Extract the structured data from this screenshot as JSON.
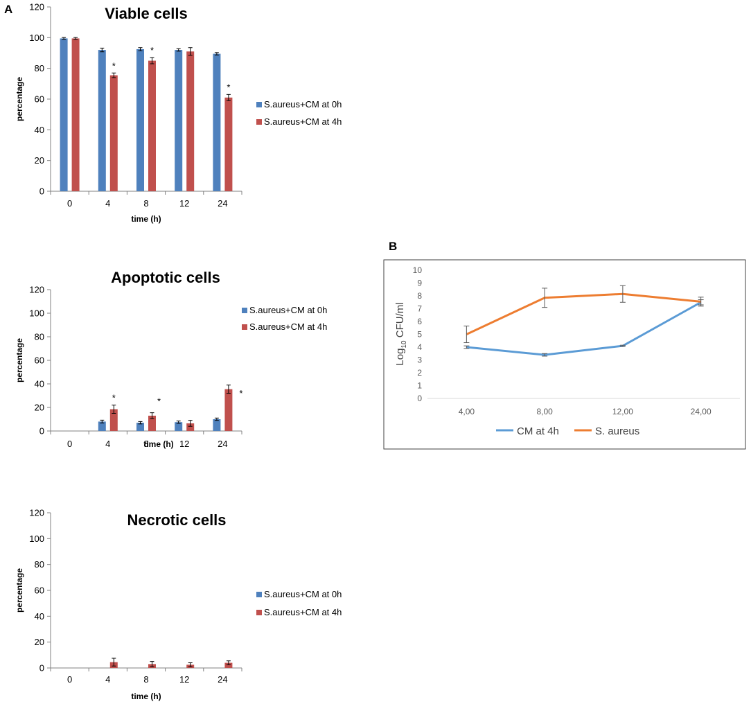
{
  "panels": {
    "a": "A",
    "b": "B"
  },
  "colors": {
    "series0": "#4f81bd",
    "series1": "#c0504d",
    "cm4h": "#5b9bd5",
    "saureus": "#ed7d31",
    "axis": "#7f7f7f",
    "frame": "#404040"
  },
  "chart_data": [
    {
      "id": "viable",
      "type": "bar",
      "title": "Viable cells",
      "xlabel": "time (h)",
      "ylabel": "percentage",
      "ylim": [
        0,
        120
      ],
      "yticks": [
        0,
        20,
        40,
        60,
        80,
        100,
        120
      ],
      "categories": [
        "0",
        "4",
        "8",
        "12",
        "24"
      ],
      "series": [
        {
          "name": "S.aureus+CM at 0h",
          "values": [
            99.5,
            92,
            92.5,
            92,
            89.5
          ],
          "errors": [
            0.6,
            1.2,
            1.0,
            0.8,
            0.8
          ]
        },
        {
          "name": "S.aureus+CM at 4h",
          "values": [
            99.5,
            75.5,
            85,
            91,
            61
          ],
          "errors": [
            0.6,
            1.5,
            2.0,
            2.5,
            2.0
          ]
        }
      ],
      "annotations": [
        {
          "text": "*",
          "category": "4",
          "series": 1
        },
        {
          "text": "*",
          "category": "8",
          "series": 1
        },
        {
          "text": "*",
          "category": "24",
          "series": 1
        }
      ],
      "legend": "right"
    },
    {
      "id": "apoptotic",
      "type": "bar",
      "title": "Apoptotic cells",
      "xlabel": "time (h)",
      "ylabel": "percentage",
      "ylim": [
        0,
        120
      ],
      "yticks": [
        0,
        20,
        40,
        60,
        80,
        100,
        120
      ],
      "categories": [
        "0",
        "4",
        "8",
        "12",
        "24"
      ],
      "series": [
        {
          "name": "S.aureus+CM at 0h",
          "values": [
            0,
            8,
            7,
            7.5,
            10
          ],
          "errors": [
            0,
            1.2,
            1.0,
            1.0,
            1.0
          ]
        },
        {
          "name": "S.aureus+CM at 4h",
          "values": [
            0,
            18.5,
            13,
            6.5,
            35.5
          ],
          "errors": [
            0,
            3.5,
            2.5,
            2.5,
            3.5
          ]
        }
      ],
      "annotations": [
        {
          "text": "*",
          "category": "4",
          "series": 1
        },
        {
          "text": "*",
          "category": "8",
          "series": 1
        },
        {
          "text": "*",
          "category": "24",
          "series": 1
        }
      ],
      "legend": "top-right"
    },
    {
      "id": "necrotic",
      "type": "bar",
      "title": "Necrotic cells",
      "xlabel": "time (h)",
      "ylabel": "percentage",
      "ylim": [
        0,
        120
      ],
      "yticks": [
        0,
        20,
        40,
        60,
        80,
        100,
        120
      ],
      "categories": [
        "0",
        "4",
        "8",
        "12",
        "24"
      ],
      "series": [
        {
          "name": "S.aureus+CM at 0h",
          "values": [
            0,
            0,
            0,
            0,
            0
          ],
          "errors": [
            0,
            0,
            0,
            0,
            0
          ]
        },
        {
          "name": "S.aureus+CM at 4h",
          "values": [
            0,
            4.5,
            3,
            2.5,
            4
          ],
          "errors": [
            0,
            3,
            2,
            1.5,
            1.5
          ]
        }
      ],
      "annotations": [],
      "legend": "right"
    },
    {
      "id": "cfu",
      "type": "line",
      "title": "",
      "xlabel": "",
      "ylabel": "Log",
      "ylabel_sub": "10",
      "ylabel_suffix": " CFU/ml",
      "ylim": [
        0,
        10
      ],
      "yticks": [
        0,
        1,
        2,
        3,
        4,
        5,
        6,
        7,
        8,
        9,
        10
      ],
      "categories": [
        "4,00",
        "8,00",
        "12,00",
        "24,00"
      ],
      "series": [
        {
          "name": "CM at 4h",
          "values": [
            4.0,
            3.4,
            4.1,
            7.5
          ],
          "errors": [
            0.1,
            0.1,
            0.05,
            0.2
          ]
        },
        {
          "name": "S. aureus",
          "values": [
            5.0,
            7.85,
            8.15,
            7.55
          ],
          "errors": [
            0.65,
            0.75,
            0.65,
            0.35
          ]
        }
      ],
      "legend": "bottom"
    }
  ]
}
